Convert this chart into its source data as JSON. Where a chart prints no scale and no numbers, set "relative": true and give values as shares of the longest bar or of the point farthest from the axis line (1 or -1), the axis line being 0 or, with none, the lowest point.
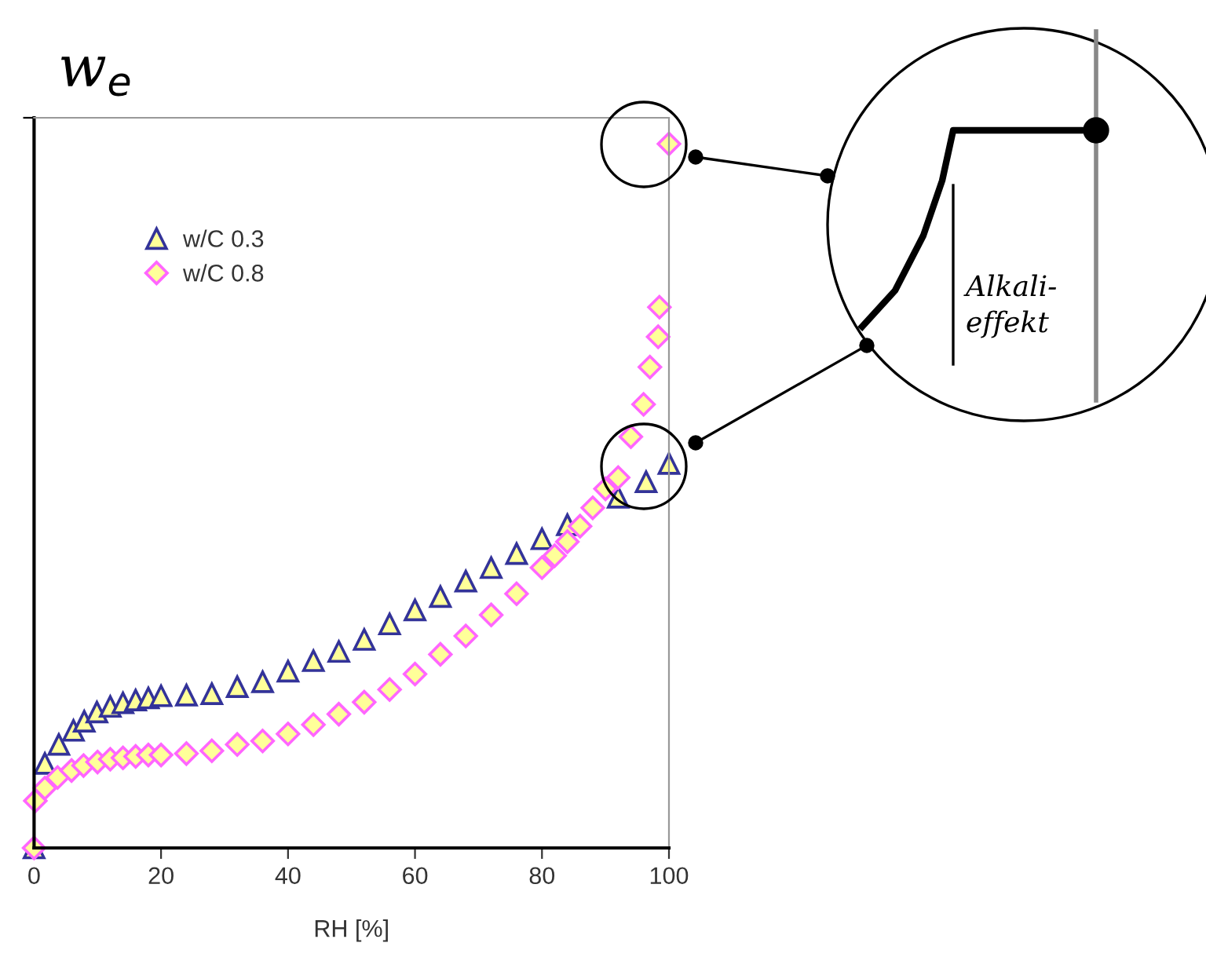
{
  "chart_data": {
    "type": "scatter",
    "relative": true,
    "xlabel": "RH [%]",
    "ylabel": "w$_{e}$",
    "xlim": [
      0,
      100
    ],
    "xticks": [
      0,
      20,
      40,
      60,
      80,
      100
    ],
    "tick_labels": "x",
    "grid": false,
    "legend": "top left",
    "annotations": [
      "Alkali-\neffekt"
    ],
    "series": [
      {
        "name": "w/C 0.3",
        "color": "#333399",
        "marker": "triangle",
        "x": [
          0,
          1.7,
          3.9,
          6.2,
          7.9,
          9.9,
          12,
          14,
          16,
          18,
          20,
          24,
          28,
          32,
          36,
          40,
          44,
          48,
          52,
          56,
          60,
          64,
          68,
          72,
          76,
          80,
          84,
          88,
          92,
          96.4,
          100
        ],
        "values": [
          0,
          0.12,
          0.147,
          0.167,
          0.18,
          0.193,
          0.201,
          0.206,
          0.21,
          0.213,
          0.216,
          0.217,
          0.219,
          0.229,
          0.236,
          0.251,
          0.266,
          0.279,
          0.296,
          0.318,
          0.338,
          0.357,
          0.379,
          0.398,
          0.418,
          0.439,
          0.459,
          null,
          0.498,
          0.52,
          0.546
        ]
      },
      {
        "name": "w/C 0.8",
        "color": "#ff66ff",
        "marker": "diamond",
        "x": [
          0,
          0.2,
          1.7,
          3.7,
          5.9,
          7.8,
          10,
          12,
          14,
          16,
          18,
          20,
          24,
          28,
          32,
          36,
          40,
          44,
          48,
          52,
          56,
          60,
          64,
          68,
          72,
          76,
          80,
          82,
          84,
          86,
          88,
          90,
          92,
          94,
          96,
          97,
          98.3,
          98.5,
          100
        ],
        "values": [
          0,
          0.067,
          0.085,
          0.1,
          0.11,
          0.117,
          0.122,
          0.126,
          0.128,
          0.13,
          0.132,
          0.132,
          0.134,
          0.138,
          0.147,
          0.152,
          0.162,
          0.175,
          0.19,
          0.207,
          0.225,
          0.247,
          0.275,
          0.301,
          0.331,
          0.361,
          0.398,
          0.415,
          0.435,
          0.457,
          0.483,
          0.51,
          0.526,
          0.584,
          0.63,
          0.683,
          0.726,
          0.768,
          1.0
        ]
      }
    ]
  }
}
